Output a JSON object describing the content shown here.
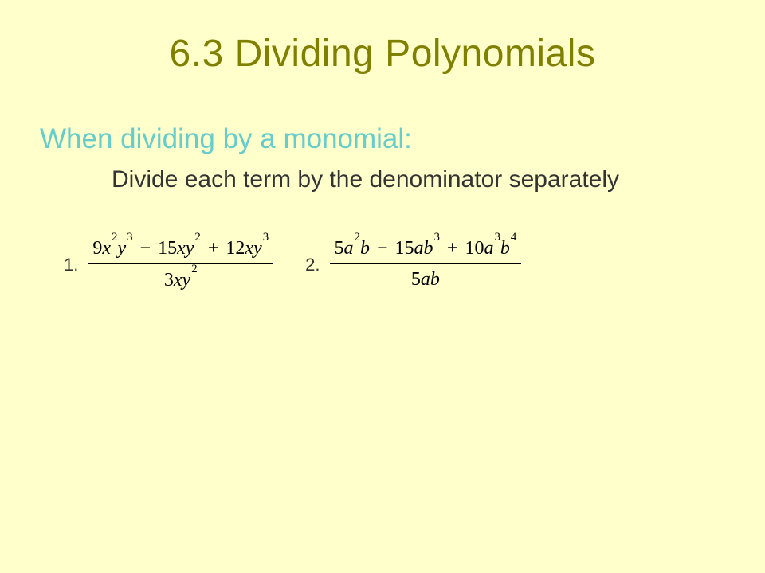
{
  "colors": {
    "background": "#ffffcc",
    "title": "#808000",
    "subtitle": "#66cccc",
    "body_text": "#333333",
    "math_text": "#000000",
    "label_text": "#333333",
    "fraction_bar": "#000000"
  },
  "typography": {
    "title_fontsize": 48,
    "subtitle_fontsize": 35,
    "instruction_fontsize": 30,
    "math_fontsize": 24,
    "label_fontsize": 22,
    "body_font": "Arial",
    "math_font": "Times New Roman"
  },
  "title": "6.3 Dividing Polynomials",
  "subtitle": "When dividing by a monomial:",
  "instruction": "Divide each term by the denominator separately",
  "problems": [
    {
      "label": "1.",
      "numerator": {
        "terms": [
          {
            "coef": "9",
            "var1": "x",
            "exp1": "2",
            "var2": "y",
            "exp2": "3"
          },
          {
            "op": "−",
            "coef": "15",
            "var1": "x",
            "var2": "y",
            "exp2": "2"
          },
          {
            "op": "+",
            "coef": "12",
            "var1": "x",
            "var2": "y",
            "exp2": "3"
          }
        ]
      },
      "denominator": {
        "coef": "3",
        "var1": "x",
        "var2": "y",
        "exp2": "2"
      }
    },
    {
      "label": "2.",
      "numerator": {
        "terms": [
          {
            "coef": "5",
            "var1": "a",
            "exp1": "2",
            "var2": "b"
          },
          {
            "op": "−",
            "coef": "15",
            "var1": "a",
            "var2": "b",
            "exp2": "3"
          },
          {
            "op": "+",
            "coef": "10",
            "var1": "a",
            "exp1": "3",
            "var2": "b",
            "exp2": "4"
          }
        ]
      },
      "denominator": {
        "coef": "5",
        "var1": "a",
        "var2": "b"
      }
    }
  ]
}
